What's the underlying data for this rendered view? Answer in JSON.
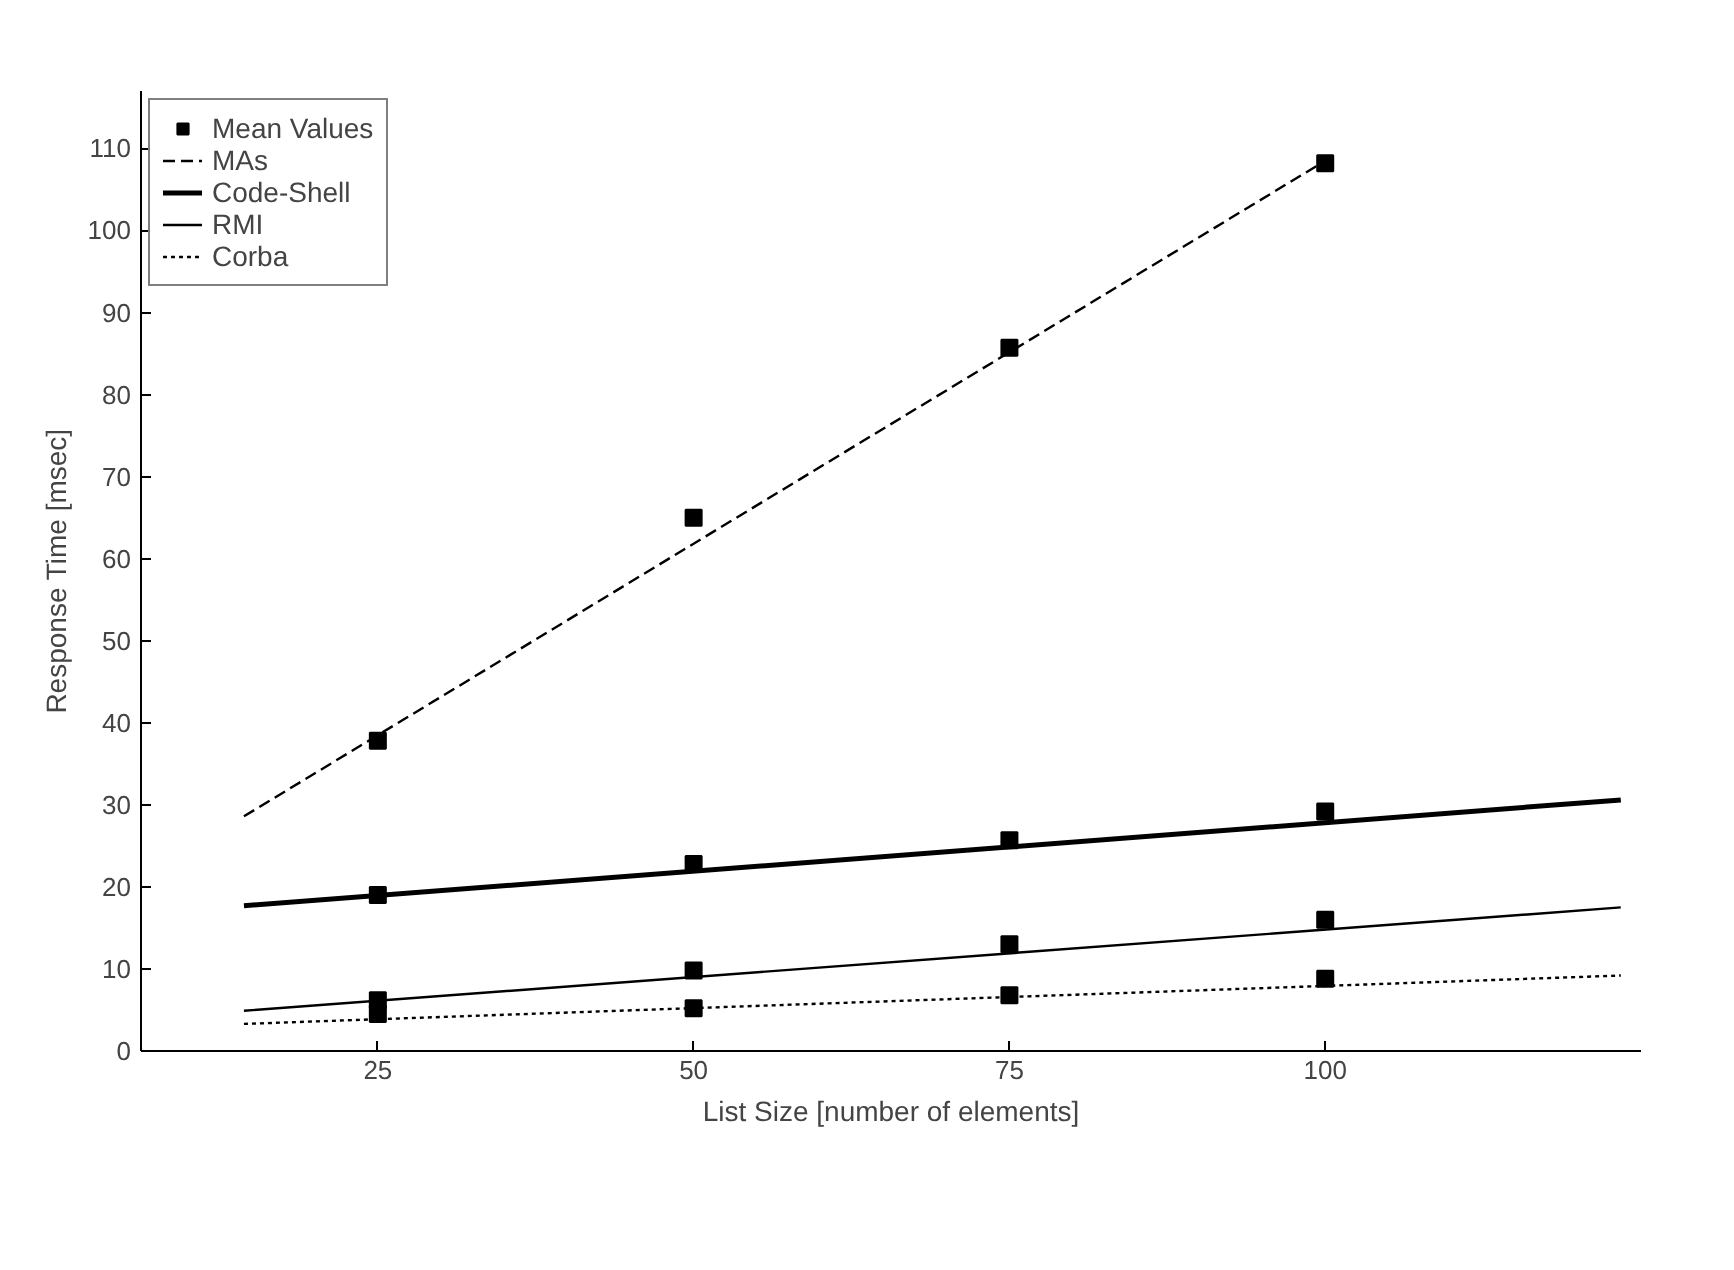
{
  "chart_data": {
    "type": "scatter",
    "xlabel": "List Size [number of elements]",
    "ylabel": "Response Time [msec]",
    "xlim": [
      6.25,
      125
    ],
    "ylim": [
      0,
      117
    ],
    "xticks": [
      25,
      50,
      75,
      100
    ],
    "yticks": [
      0,
      10,
      20,
      30,
      40,
      50,
      60,
      70,
      80,
      90,
      100,
      110
    ],
    "grid": false,
    "legend": "top left",
    "series": [
      {
        "name": "Mean Values",
        "marker": "square",
        "color": "#000000",
        "x": [
          25,
          25,
          25,
          25,
          50,
          50,
          50,
          50,
          75,
          75,
          75,
          75,
          100,
          100,
          100,
          100
        ],
        "values": [
          37.8,
          19,
          6.2,
          4.5,
          65,
          22.8,
          9.8,
          5.2,
          85.7,
          25.7,
          13,
          6.8,
          108.2,
          29.2,
          16,
          8.8
        ]
      },
      {
        "name": "MAs",
        "type": "line",
        "line_style": "dashed",
        "color": "#000000",
        "x": [
          14.4,
          100
        ],
        "values": [
          28.6,
          108.5
        ]
      },
      {
        "name": "Code-Shell",
        "type": "line",
        "line_style": "solid",
        "color": "#000000",
        "x": [
          14.4,
          123.4
        ],
        "values": [
          17.7,
          30.6
        ]
      },
      {
        "name": "RMI",
        "type": "line",
        "line_style": "solid",
        "color": "#000000",
        "x": [
          14.4,
          123.4
        ],
        "values": [
          4.9,
          17.5
        ]
      },
      {
        "name": "Corba",
        "type": "line",
        "line_style": "dotted",
        "color": "#000000",
        "x": [
          14.4,
          123.4
        ],
        "values": [
          3.3,
          9.2
        ]
      }
    ]
  }
}
